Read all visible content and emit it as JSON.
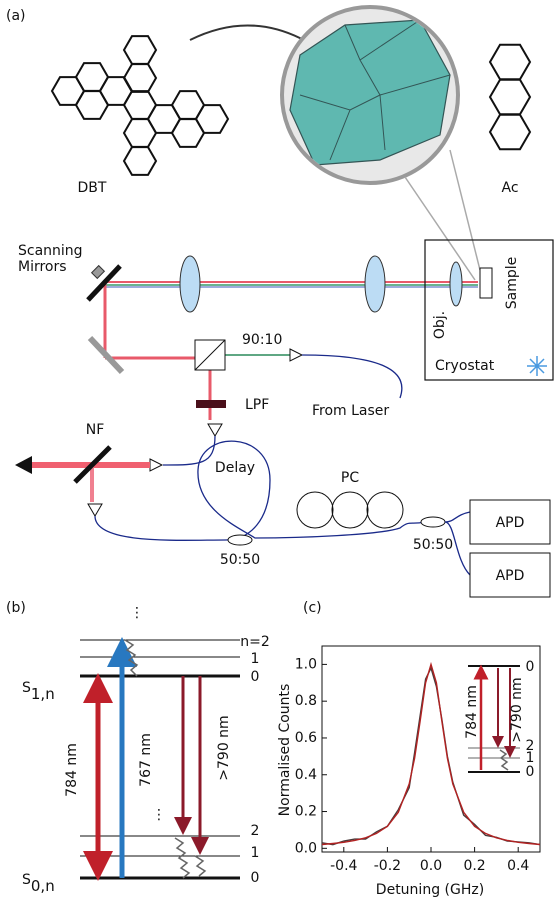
{
  "panel_labels": [
    "(a)",
    "(b)",
    "(c)"
  ],
  "molecules": {
    "dbt": "DBT",
    "ac": "Ac"
  },
  "setup": {
    "scanning_mirrors": [
      "Scanning",
      "Mirrors"
    ],
    "sample": "Sample",
    "objective": "Obj.",
    "cryostat": "Cryostat",
    "splitter": "90:10",
    "from_laser": "From Laser",
    "lpf": "LPF",
    "nf": "NF",
    "delay": "Delay",
    "pc": "PC",
    "coupler_1": "50:50",
    "coupler_2": "50:50",
    "apd_1": "APD",
    "apd_2": "APD"
  },
  "energy_diagram": {
    "s1": {
      "symbol": "S",
      "subscript": "1,n"
    },
    "s0": {
      "symbol": "S",
      "subscript": "0,n"
    },
    "upper_levels": [
      "n=2",
      "1",
      "0"
    ],
    "lower_levels": [
      "2",
      "1",
      "0"
    ],
    "dots": [
      "⋮",
      "⋮"
    ],
    "excitation": "784 nm",
    "pump": "767 nm",
    "emission": ">790 nm"
  },
  "chart_data": {
    "type": "line",
    "x_label": "Detuning (GHz)",
    "y_label": "Normalised Counts",
    "x": [
      -0.5,
      -0.45,
      -0.4,
      -0.35,
      -0.3,
      -0.25,
      -0.2,
      -0.15,
      -0.1,
      -0.075,
      -0.05,
      -0.025,
      0,
      0.025,
      0.05,
      0.075,
      0.1,
      0.15,
      0.2,
      0.25,
      0.3,
      0.35,
      0.4,
      0.45,
      0.5
    ],
    "series": [
      {
        "color": "#4a3a3a",
        "values": [
          0.03,
          0.02,
          0.04,
          0.05,
          0.05,
          0.09,
          0.12,
          0.21,
          0.33,
          0.52,
          0.72,
          0.92,
          0.98,
          0.88,
          0.7,
          0.5,
          0.36,
          0.18,
          0.13,
          0.07,
          0.06,
          0.04,
          0.035,
          0.03,
          0.02
        ]
      },
      {
        "color": "#b22222",
        "values": [
          0.021,
          0.026,
          0.033,
          0.043,
          0.057,
          0.081,
          0.12,
          0.196,
          0.35,
          0.49,
          0.69,
          0.9,
          1.0,
          0.9,
          0.69,
          0.49,
          0.35,
          0.196,
          0.12,
          0.081,
          0.057,
          0.043,
          0.033,
          0.026,
          0.021
        ]
      }
    ],
    "xlim": [
      -0.5,
      0.5
    ],
    "xticks": [
      -0.4,
      -0.2,
      {
        "value": 0,
        "label": "0.0"
      },
      0.2,
      0.4
    ],
    "ylim": [
      -0.02,
      1.1
    ],
    "yticks": [
      {
        "value": 0,
        "label": "0.0"
      },
      0.2,
      0.4,
      0.6,
      0.8,
      {
        "value": 1,
        "label": "1.0"
      }
    ],
    "inset": {
      "excitation": "784 nm",
      "emission": ">790 nm",
      "upper_levels": [
        "0"
      ],
      "lower_levels": [
        "2",
        "1",
        "0"
      ]
    }
  }
}
